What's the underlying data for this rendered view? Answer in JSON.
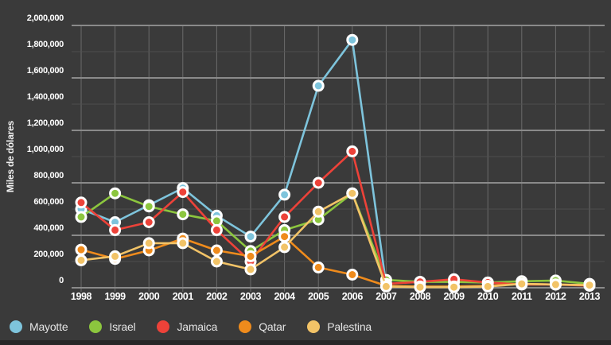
{
  "chart_data": {
    "type": "line",
    "title": "",
    "xlabel": "",
    "ylabel": "Miles de dólares",
    "ylim": [
      0,
      2000000
    ],
    "y_tick_step": 200000,
    "grid": true,
    "legend_position": "bottom",
    "y_tick_labels": [
      "0",
      "200,000",
      "400,000",
      "600,000",
      "800,000",
      "1,000,000",
      "1,200,000",
      "1,400,000",
      "1,600,000",
      "1,800,000",
      "2,000,000"
    ],
    "x_tick_labels": [
      "1998",
      "1999",
      "2000",
      "2001",
      "2002",
      "2003",
      "2004",
      "2005",
      "2006",
      "2007",
      "2008",
      "2009",
      "2010",
      "2011",
      "2012",
      "2013"
    ],
    "series": [
      {
        "name": "Mayotte",
        "color": "#7ec4dc",
        "values": [
          600000,
          500000,
          630000,
          760000,
          550000,
          390000,
          710000,
          1540000,
          1890000,
          20000,
          null,
          null,
          null,
          null,
          null,
          null
        ]
      },
      {
        "name": "Israel",
        "color": "#8cc63e",
        "values": [
          540000,
          720000,
          620000,
          560000,
          510000,
          280000,
          440000,
          520000,
          720000,
          60000,
          45000,
          45000,
          40000,
          50000,
          55000,
          30000
        ]
      },
      {
        "name": "Jamaica",
        "color": "#ed4239",
        "values": [
          650000,
          440000,
          500000,
          730000,
          440000,
          200000,
          540000,
          800000,
          1040000,
          30000,
          45000,
          65000,
          40000,
          25000,
          25000,
          15000
        ]
      },
      {
        "name": "Qatar",
        "color": "#ef8b1c",
        "values": [
          290000,
          220000,
          285000,
          375000,
          285000,
          240000,
          390000,
          155000,
          100000,
          15000,
          10000,
          10000,
          15000,
          30000,
          25000,
          20000
        ]
      },
      {
        "name": "Palestina",
        "color": "#f2c367",
        "values": [
          210000,
          240000,
          340000,
          340000,
          200000,
          140000,
          310000,
          580000,
          720000,
          10000,
          5000,
          5000,
          10000,
          30000,
          25000,
          20000
        ]
      }
    ]
  },
  "style": {
    "background": "#3a3a3a",
    "grid_major_color": "#8a8a8a",
    "grid_minor_color": "#4f4f4f",
    "grid_vertical_color": "#6b6b6b",
    "text_color": "#ffffff",
    "legend_text_color": "#e4e4e4",
    "marker_ring_color": "#ffffff"
  }
}
